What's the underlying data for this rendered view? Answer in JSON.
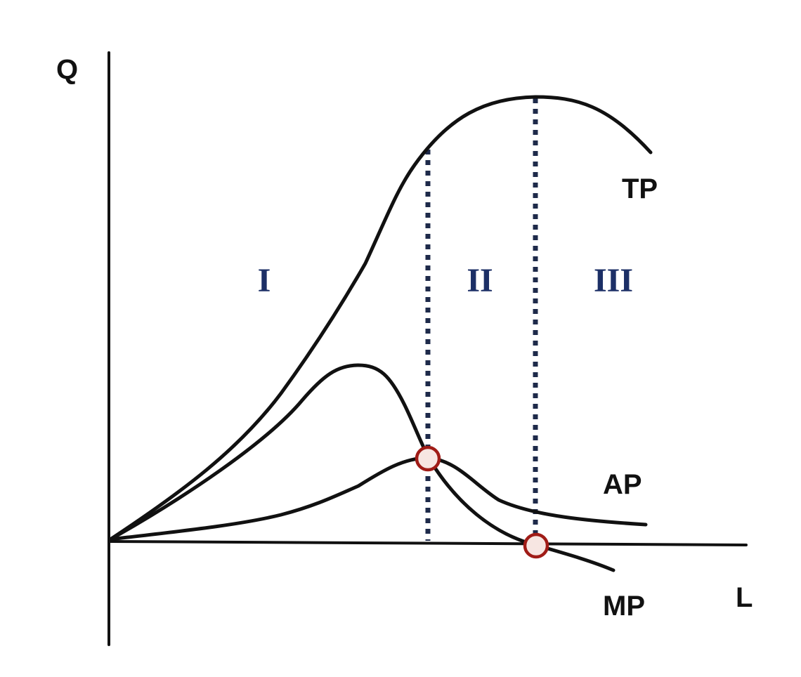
{
  "diagram": {
    "axes": {
      "y_label": "Q",
      "x_label": "L"
    },
    "curves": [
      {
        "id": "tp",
        "label": "TP"
      },
      {
        "id": "ap",
        "label": "AP"
      },
      {
        "id": "mp",
        "label": "MP"
      }
    ],
    "stages": [
      "I",
      "II",
      "III"
    ],
    "markers": [
      {
        "id": "ap-max",
        "meaning": "MP = AP"
      },
      {
        "id": "mp-zero",
        "meaning": "MP = 0"
      }
    ],
    "colors": {
      "curve": "#111111",
      "divider": "#1e2a4a",
      "stage_label": "#1c2f66",
      "marker_stroke": "#a01c17",
      "marker_fill": "#f7e6e2"
    }
  }
}
